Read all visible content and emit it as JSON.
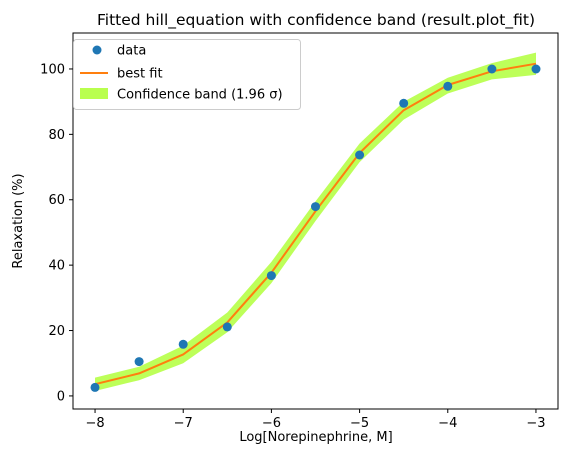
{
  "chart_data": {
    "type": "line",
    "title": "Fitted hill_equation with confidence band (result.plot_fit)",
    "xlabel": "Log[Norepinephrine, M]",
    "ylabel": "Relaxation (%)",
    "xlim": [
      -8.25,
      -2.75
    ],
    "ylim": [
      -4,
      111
    ],
    "xticks": [
      -8,
      -7,
      -6,
      -5,
      -4,
      -3
    ],
    "xtick_labels": [
      "−8",
      "−7",
      "−6",
      "−5",
      "−4",
      "−3"
    ],
    "yticks": [
      0,
      20,
      40,
      60,
      80,
      100
    ],
    "ytick_labels": [
      "0",
      "20",
      "40",
      "60",
      "80",
      "100"
    ],
    "grid": false,
    "legend_position": "top-left",
    "series": [
      {
        "name": "data",
        "kind": "scatter",
        "color": "#1f77b4",
        "x": [
          -8,
          -7.5,
          -7,
          -6.5,
          -6,
          -5.5,
          -5,
          -4.5,
          -4,
          -3.5,
          -3
        ],
        "y": [
          2.6,
          10.5,
          15.8,
          21.1,
          36.8,
          57.9,
          73.7,
          89.5,
          94.7,
          100.0,
          100.0
        ]
      },
      {
        "name": "best fit",
        "kind": "line",
        "color": "#ff7f0e",
        "x": [
          -8,
          -7.5,
          -7,
          -6.5,
          -6,
          -5.5,
          -5,
          -4.5,
          -4,
          -3.5,
          -3
        ],
        "y": [
          3.6,
          6.9,
          12.7,
          22.5,
          37.7,
          56.5,
          74.3,
          87.4,
          95.1,
          99.3,
          101.6
        ]
      },
      {
        "name": "Confidence band (1.96 σ)",
        "kind": "band",
        "color": "#adff2f",
        "x": [
          -8,
          -7.5,
          -7,
          -6.5,
          -6,
          -5.5,
          -5,
          -4.5,
          -4,
          -3.5,
          -3
        ],
        "lower": [
          1.5,
          4.8,
          10.0,
          19.5,
          34.5,
          53.5,
          71.5,
          84.5,
          92.5,
          96.8,
          98.2
        ],
        "upper": [
          5.6,
          8.9,
          15.4,
          25.5,
          41.0,
          59.5,
          77.2,
          90.0,
          97.3,
          101.8,
          105.0
        ]
      }
    ]
  }
}
